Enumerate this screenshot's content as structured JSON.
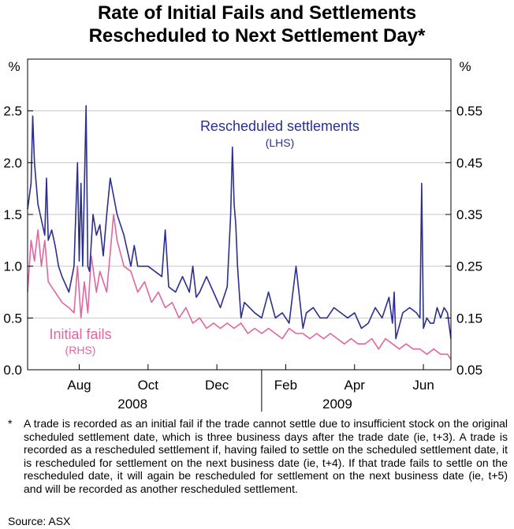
{
  "chart_data": {
    "type": "line",
    "title_line1": "Rate of Initial Fails and Settlements",
    "title_line2": "Rescheduled to Next Settlement Day*",
    "left_unit": "%",
    "right_unit": "%",
    "left_axis": {
      "min": 0.0,
      "max": 3.0,
      "ticks": [
        "0.0",
        "0.5",
        "1.0",
        "1.5",
        "2.0",
        "2.5"
      ]
    },
    "right_axis": {
      "min": 0.05,
      "max": 0.65,
      "ticks": [
        "0.05",
        "0.15",
        "0.25",
        "0.35",
        "0.45",
        "0.55"
      ]
    },
    "x_ticks": [
      "Aug",
      "Oct",
      "Dec",
      "Feb",
      "Apr",
      "Jun"
    ],
    "x_tick_values": [
      1.5,
      3.5,
      5.5,
      7.5,
      9.5,
      11.5
    ],
    "x_range": [
      0.0,
      12.3
    ],
    "year_labels": [
      "2008",
      "2009"
    ],
    "year_label_values": [
      3.05,
      9.0
    ],
    "year_divider_value": 6.8,
    "series": [
      {
        "name": "Rescheduled settlements",
        "axis_label": "(LHS)",
        "axis": "left",
        "color": "#2b2f8f",
        "x": [
          0.0,
          0.1,
          0.15,
          0.2,
          0.3,
          0.5,
          0.55,
          0.6,
          0.7,
          0.8,
          0.9,
          1.0,
          1.2,
          1.35,
          1.45,
          1.5,
          1.55,
          1.6,
          1.7,
          1.75,
          1.8,
          1.9,
          2.0,
          2.1,
          2.2,
          2.3,
          2.4,
          2.6,
          2.8,
          3.0,
          3.1,
          3.2,
          3.3,
          3.5,
          3.7,
          3.9,
          4.0,
          4.1,
          4.3,
          4.5,
          4.7,
          4.8,
          4.9,
          5.0,
          5.2,
          5.4,
          5.6,
          5.8,
          5.9,
          5.95,
          6.0,
          6.05,
          6.1,
          6.2,
          6.3,
          6.6,
          6.8,
          7.0,
          7.2,
          7.4,
          7.6,
          7.8,
          8.0,
          8.1,
          8.3,
          8.5,
          8.7,
          8.9,
          9.1,
          9.3,
          9.5,
          9.7,
          9.9,
          10.1,
          10.3,
          10.5,
          10.6,
          10.65,
          10.7,
          10.9,
          11.1,
          11.3,
          11.4,
          11.45,
          11.5,
          11.6,
          11.7,
          11.8,
          11.9,
          12.0,
          12.1,
          12.2,
          12.3
        ],
        "y": [
          1.55,
          1.8,
          2.45,
          2.0,
          1.6,
          1.3,
          1.85,
          1.25,
          1.35,
          1.2,
          1.0,
          0.9,
          0.75,
          1.0,
          2.0,
          1.05,
          1.8,
          1.0,
          2.55,
          1.0,
          0.95,
          1.5,
          1.3,
          1.4,
          1.1,
          1.5,
          1.85,
          1.5,
          1.3,
          1.0,
          1.2,
          1.0,
          1.0,
          1.0,
          0.95,
          0.9,
          1.35,
          0.8,
          0.75,
          0.9,
          0.75,
          1.0,
          0.7,
          0.75,
          0.9,
          0.75,
          0.6,
          0.8,
          1.5,
          2.15,
          1.6,
          1.4,
          1.0,
          0.5,
          0.65,
          0.55,
          0.5,
          0.75,
          0.5,
          0.55,
          0.45,
          1.0,
          0.4,
          0.55,
          0.6,
          0.5,
          0.5,
          0.6,
          0.55,
          0.5,
          0.55,
          0.4,
          0.45,
          0.6,
          0.5,
          0.7,
          0.45,
          0.75,
          0.3,
          0.55,
          0.6,
          0.55,
          0.5,
          1.8,
          0.4,
          0.5,
          0.45,
          0.45,
          0.6,
          0.5,
          0.6,
          0.55,
          0.3
        ]
      },
      {
        "name": "Initial fails",
        "axis_label": "(RHS)",
        "axis": "right",
        "color": "#e0669f",
        "x": [
          0.0,
          0.1,
          0.2,
          0.3,
          0.4,
          0.5,
          0.6,
          0.8,
          1.0,
          1.2,
          1.35,
          1.45,
          1.55,
          1.65,
          1.75,
          1.85,
          2.0,
          2.1,
          2.3,
          2.5,
          2.6,
          2.8,
          3.0,
          3.2,
          3.4,
          3.6,
          3.8,
          4.0,
          4.2,
          4.4,
          4.6,
          4.8,
          5.0,
          5.2,
          5.4,
          5.6,
          5.8,
          6.0,
          6.2,
          6.4,
          6.6,
          6.8,
          7.0,
          7.2,
          7.4,
          7.6,
          7.8,
          8.0,
          8.2,
          8.4,
          8.6,
          8.8,
          9.0,
          9.2,
          9.4,
          9.6,
          9.8,
          10.0,
          10.2,
          10.4,
          10.6,
          10.8,
          11.0,
          11.2,
          11.4,
          11.6,
          11.8,
          12.0,
          12.2,
          12.3
        ],
        "y": [
          0.2,
          0.3,
          0.26,
          0.32,
          0.25,
          0.3,
          0.22,
          0.2,
          0.18,
          0.17,
          0.16,
          0.25,
          0.15,
          0.22,
          0.16,
          0.27,
          0.2,
          0.24,
          0.2,
          0.35,
          0.3,
          0.25,
          0.24,
          0.2,
          0.22,
          0.18,
          0.2,
          0.17,
          0.18,
          0.15,
          0.17,
          0.14,
          0.15,
          0.13,
          0.14,
          0.13,
          0.14,
          0.13,
          0.14,
          0.12,
          0.13,
          0.12,
          0.13,
          0.12,
          0.11,
          0.13,
          0.12,
          0.12,
          0.11,
          0.12,
          0.11,
          0.12,
          0.11,
          0.1,
          0.11,
          0.1,
          0.1,
          0.11,
          0.09,
          0.11,
          0.1,
          0.09,
          0.1,
          0.09,
          0.09,
          0.08,
          0.09,
          0.08,
          0.08,
          0.07
        ]
      }
    ]
  },
  "rescheduled_label": "Rescheduled settlements",
  "rescheduled_axis": "(LHS)",
  "initial_label": "Initial fails",
  "initial_axis": "(RHS)",
  "footnote_star": "*",
  "footnote": "A trade is recorded as an initial fail if the trade cannot settle due to insufficient stock on the original scheduled settlement date, which is three business days after the trade date (ie, t+3). A trade is recorded as a rescheduled settlement if, having failed to settle on the scheduled settlement date, it is rescheduled for settlement on the next business date (ie, t+4). If that trade fails to settle on the rescheduled date, it will again be rescheduled for settlement on the next business date (ie, t+5) and will be recorded as another rescheduled settlement.",
  "source": "Source: ASX"
}
